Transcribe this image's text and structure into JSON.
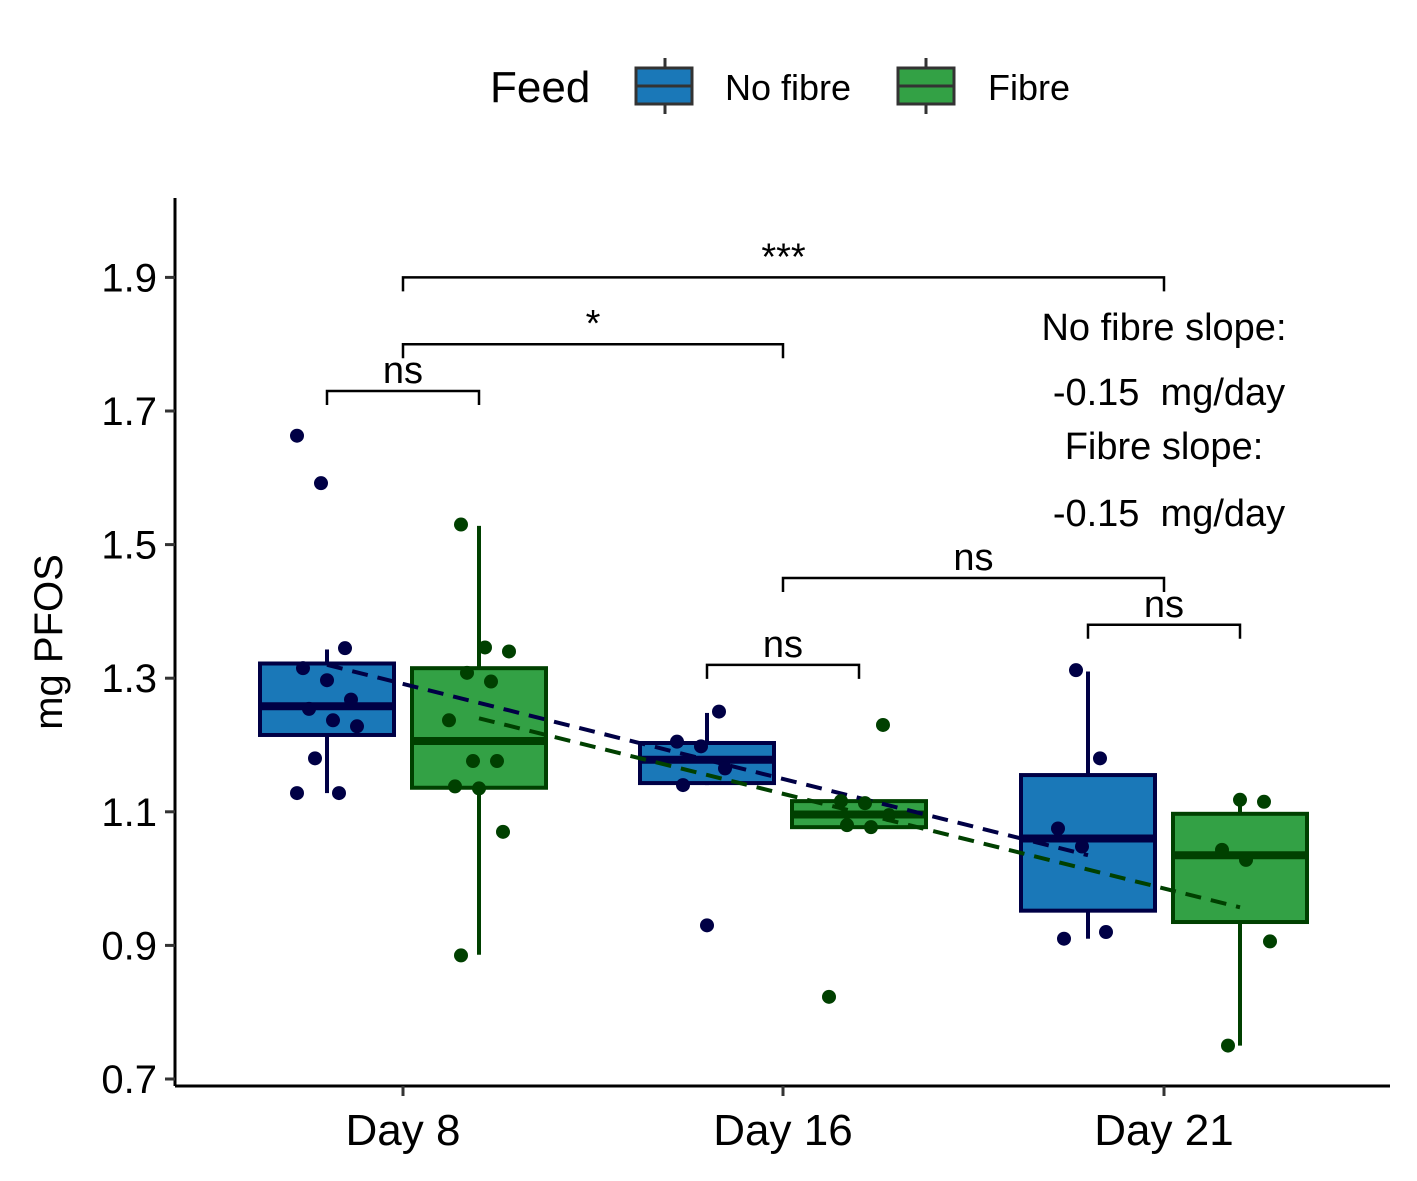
{
  "chart_data": {
    "type": "box",
    "ylabel": "mg PFOS",
    "xlabel": "",
    "ylim": [
      0.7,
      2.0
    ],
    "yticks": [
      "0.7",
      "0.9",
      "1.1",
      "1.3",
      "1.5",
      "1.7",
      "1.9"
    ],
    "categories": [
      "Day 8",
      "Day 16",
      "Day 21"
    ],
    "legend": {
      "title": "Feed",
      "position": "top",
      "entries": [
        {
          "name": "No fibre",
          "fill": "#1a78b8",
          "stroke": "#000045"
        },
        {
          "name": "Fibre",
          "fill": "#33a145",
          "stroke": "#004000"
        }
      ]
    },
    "series": [
      {
        "name": "No fibre",
        "fill": "#1a78b8",
        "stroke": "#000045",
        "boxes": [
          {
            "category": "Day 8",
            "min": 1.128,
            "q1": 1.215,
            "median": 1.258,
            "q3": 1.322,
            "max": 1.343
          },
          {
            "category": "Day 16",
            "min": 1.14,
            "q1": 1.143,
            "median": 1.178,
            "q3": 1.203,
            "max": 1.248
          },
          {
            "category": "Day 21",
            "min": 0.91,
            "q1": 0.952,
            "median": 1.06,
            "q3": 1.155,
            "max": 1.31
          }
        ],
        "points": [
          {
            "category": "Day 8",
            "values": [
              1.663,
              1.592,
              1.345,
              1.315,
              1.297,
              1.268,
              1.254,
              1.237,
              1.228,
              1.18,
              1.128,
              1.128
            ]
          },
          {
            "category": "Day 16",
            "values": [
              1.25,
              1.205,
              1.198,
              1.165,
              1.14,
              0.93
            ]
          },
          {
            "category": "Day 21",
            "values": [
              1.312,
              1.18,
              1.075,
              1.048,
              0.92,
              0.91
            ]
          }
        ],
        "trend": {
          "from": 1.32,
          "to": 1.035
        }
      },
      {
        "name": "Fibre",
        "fill": "#33a145",
        "stroke": "#004000",
        "boxes": [
          {
            "category": "Day 8",
            "min": 0.886,
            "q1": 1.136,
            "median": 1.206,
            "q3": 1.315,
            "max": 1.528
          },
          {
            "category": "Day 16",
            "min": 1.075,
            "q1": 1.077,
            "median": 1.096,
            "q3": 1.116,
            "max": 1.116
          },
          {
            "category": "Day 21",
            "min": 0.75,
            "q1": 0.935,
            "median": 1.035,
            "q3": 1.097,
            "max": 1.116
          }
        ],
        "points": [
          {
            "category": "Day 8",
            "values": [
              1.53,
              1.346,
              1.34,
              1.308,
              1.295,
              1.237,
              1.176,
              1.176,
              1.138,
              1.135,
              1.07,
              0.885
            ]
          },
          {
            "category": "Day 16",
            "values": [
              1.23,
              1.116,
              1.113,
              1.095,
              1.08,
              1.077,
              0.823
            ]
          },
          {
            "category": "Day 21",
            "values": [
              1.118,
              1.115,
              1.043,
              1.028,
              0.906,
              0.75
            ]
          }
        ],
        "trend": {
          "from": 1.24,
          "to": 0.957
        }
      }
    ],
    "annotations": [
      "No fibre slope:",
      "-0.15  mg/day",
      "Fibre slope:",
      "-0.15  mg/day"
    ],
    "significance": [
      {
        "label": "ns",
        "from": "Day 8 No fibre",
        "to": "Day 8 Fibre",
        "y": 1.73
      },
      {
        "label": "*",
        "from": "Day 8",
        "to": "Day 16",
        "y": 1.8
      },
      {
        "label": "***",
        "from": "Day 8",
        "to": "Day 21",
        "y": 1.9
      },
      {
        "label": "ns",
        "from": "Day 16 No fibre",
        "to": "Day 16 Fibre",
        "y": 1.32
      },
      {
        "label": "ns",
        "from": "Day 16",
        "to": "Day 21",
        "y": 1.45
      },
      {
        "label": "ns",
        "from": "Day 21 No fibre",
        "to": "Day 21 Fibre",
        "y": 1.38
      }
    ]
  }
}
